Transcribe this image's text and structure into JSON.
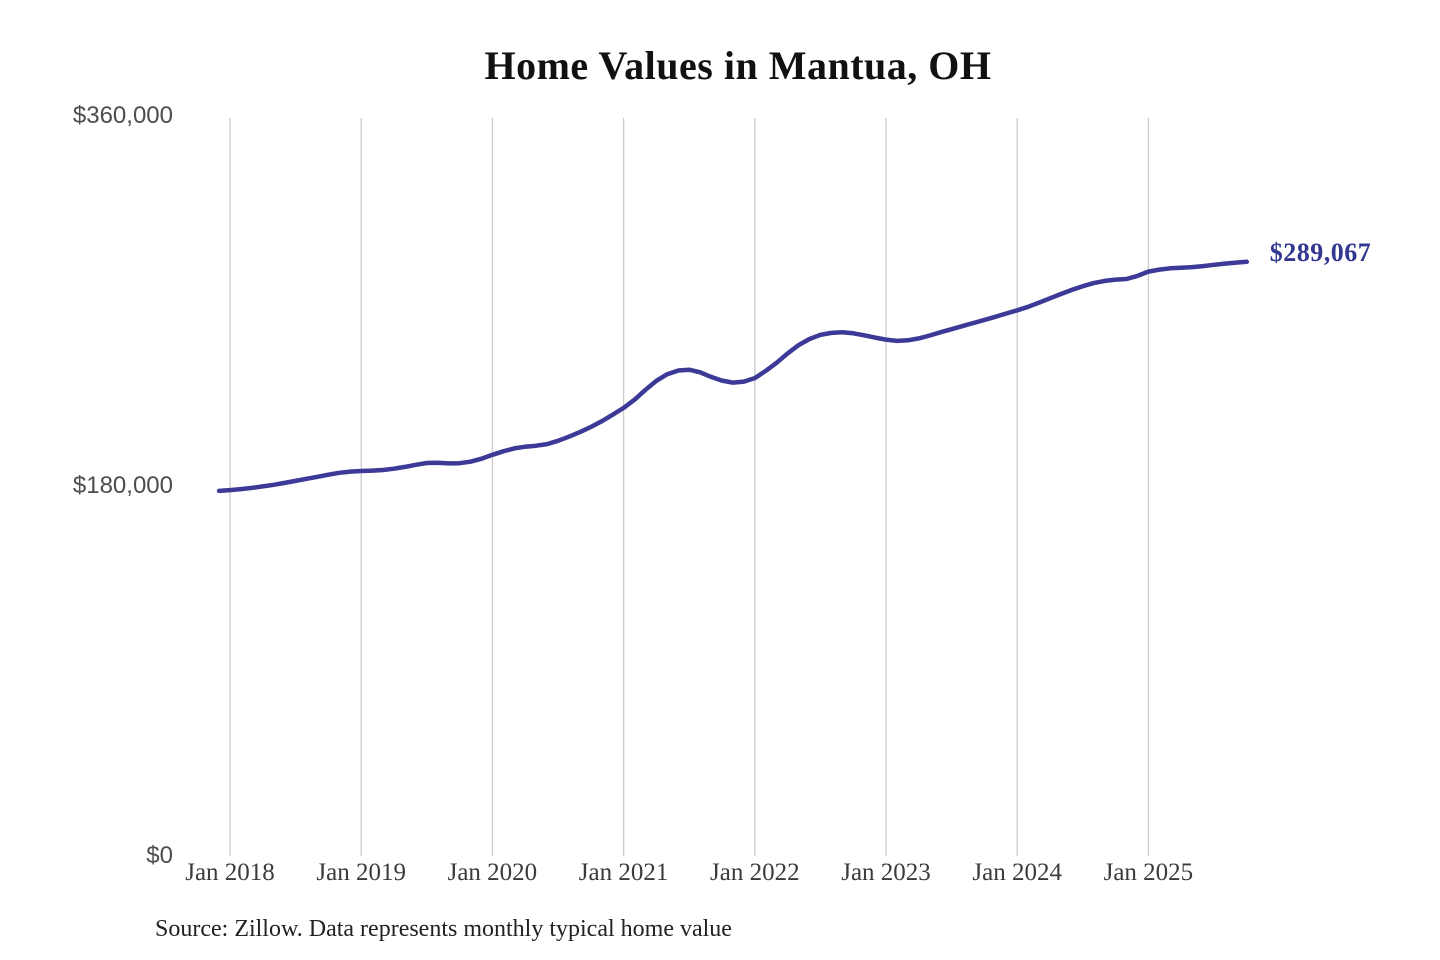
{
  "title": "Home Values in Mantua, OH",
  "source_note": "Source: Zillow. Data represents monthly typical home value",
  "end_label": "$289,067",
  "colors": {
    "line": "#3d3a97",
    "annotation": "#32378f",
    "gridline": "#cbcbcb",
    "title": "#111111",
    "y_tick_text": "#4d4d4d",
    "x_tick_text": "#3b3b3b",
    "source_text": "#222222",
    "background": "#ffffff"
  },
  "chart_data": {
    "type": "line",
    "title": "Home Values in Mantua, OH",
    "xlabel": "",
    "ylabel": "",
    "ylim": [
      0,
      360000
    ],
    "grid": "vertical-only",
    "legend": "none",
    "annotation": {
      "text": "$289,067",
      "position": "end-of-line"
    },
    "y_ticks": [
      {
        "label": "$360,000",
        "value": 360000
      },
      {
        "label": "$180,000",
        "value": 180000
      },
      {
        "label": "$0",
        "value": 0
      }
    ],
    "x_ticks": [
      {
        "label": "Jan 2018",
        "month": "2018-01"
      },
      {
        "label": "Jan 2019",
        "month": "2019-01"
      },
      {
        "label": "Jan 2020",
        "month": "2020-01"
      },
      {
        "label": "Jan 2021",
        "month": "2021-01"
      },
      {
        "label": "Jan 2022",
        "month": "2022-01"
      },
      {
        "label": "Jan 2023",
        "month": "2023-01"
      },
      {
        "label": "Jan 2024",
        "month": "2024-01"
      },
      {
        "label": "Jan 2025",
        "month": "2025-01"
      }
    ],
    "series": [
      {
        "name": "Monthly typical home value",
        "color": "#3d3a97",
        "frequency": "monthly",
        "start_month": "2017-12",
        "end_month": "2025-10",
        "end_value": 289067,
        "end_label": "$289,067",
        "values": [
          177600,
          178000,
          178500,
          179100,
          179800,
          180600,
          181500,
          182500,
          183500,
          184500,
          185500,
          186400,
          187000,
          187300,
          187500,
          187800,
          188400,
          189300,
          190300,
          191200,
          191300,
          191000,
          191100,
          191800,
          193300,
          195200,
          196900,
          198300,
          199100,
          199600,
          200400,
          202000,
          204000,
          206200,
          208700,
          211500,
          214700,
          218000,
          222000,
          226800,
          231200,
          234400,
          236200,
          236600,
          235300,
          233100,
          231300,
          230300,
          230800,
          232500,
          236000,
          240000,
          244500,
          248500,
          251500,
          253500,
          254500,
          254800,
          254300,
          253300,
          252200,
          251200,
          250600,
          250900,
          251800,
          253200,
          254800,
          256300,
          257800,
          259300,
          260800,
          262300,
          263900,
          265500,
          267200,
          269200,
          271300,
          273400,
          275400,
          277200,
          278700,
          279800,
          280400,
          280700,
          282200,
          284300,
          285300,
          285900,
          286200,
          286500,
          287000,
          287600,
          288200,
          288700,
          289067
        ]
      }
    ]
  }
}
